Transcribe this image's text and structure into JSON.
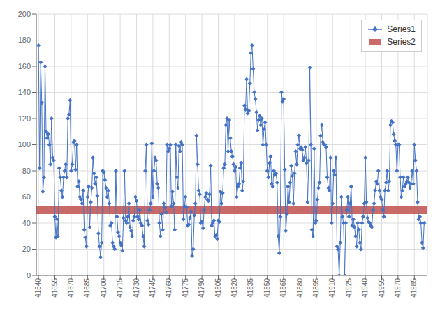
{
  "chart_data": {
    "type": "line",
    "x": [
      41640,
      41641,
      41642,
      41643,
      41644,
      41645,
      41646,
      41647,
      41648,
      41649,
      41650,
      41651,
      41652,
      41653,
      41654,
      41655,
      41656,
      41657,
      41658,
      41659,
      41660,
      41661,
      41662,
      41663,
      41664,
      41665,
      41666,
      41667,
      41668,
      41669,
      41670,
      41671,
      41672,
      41673,
      41674,
      41675,
      41676,
      41677,
      41678,
      41679,
      41680,
      41681,
      41682,
      41683,
      41684,
      41685,
      41686,
      41687,
      41688,
      41689,
      41690,
      41691,
      41692,
      41693,
      41694,
      41695,
      41696,
      41697,
      41698,
      41699,
      41700,
      41701,
      41702,
      41703,
      41704,
      41705,
      41706,
      41707,
      41708,
      41709,
      41710,
      41711,
      41712,
      41713,
      41714,
      41715,
      41716,
      41717,
      41718,
      41719,
      41720,
      41721,
      41722,
      41723,
      41724,
      41725,
      41726,
      41727,
      41728,
      41729,
      41730,
      41731,
      41732,
      41733,
      41734,
      41735,
      41736,
      41737,
      41738,
      41739,
      41740,
      41741,
      41742,
      41743,
      41744,
      41745,
      41746,
      41747,
      41748,
      41749,
      41750,
      41751,
      41752,
      41753,
      41754,
      41755,
      41756,
      41757,
      41758,
      41759,
      41760,
      41761,
      41762,
      41763,
      41764,
      41765,
      41766,
      41767,
      41768,
      41769,
      41770,
      41771,
      41772,
      41773,
      41774,
      41775,
      41776,
      41777,
      41778,
      41779,
      41780,
      41781,
      41782,
      41783,
      41784,
      41785,
      41786,
      41787,
      41788,
      41789,
      41790,
      41791,
      41792,
      41793,
      41794,
      41795,
      41796,
      41797,
      41798,
      41799,
      41800,
      41801,
      41802,
      41803,
      41804,
      41805,
      41806,
      41807,
      41808,
      41809,
      41810,
      41811,
      41812,
      41813,
      41814,
      41815,
      41816,
      41817,
      41818,
      41819,
      41820,
      41821,
      41822,
      41823,
      41824,
      41825,
      41826,
      41827,
      41828,
      41829,
      41830,
      41831,
      41832,
      41833,
      41834,
      41835,
      41836,
      41837,
      41838,
      41839,
      41840,
      41841,
      41842,
      41843,
      41844,
      41845,
      41846,
      41847,
      41848,
      41849,
      41850,
      41851,
      41852,
      41853,
      41854,
      41855,
      41856,
      41857,
      41858,
      41859,
      41860,
      41861,
      41862,
      41863,
      41864,
      41865,
      41866,
      41867,
      41868,
      41869,
      41870,
      41871,
      41872,
      41873,
      41874,
      41875,
      41876,
      41877,
      41878,
      41879,
      41880,
      41881,
      41882,
      41883,
      41884,
      41885,
      41886,
      41887,
      41888,
      41889,
      41890,
      41891,
      41892,
      41893,
      41894,
      41895,
      41896,
      41897,
      41898,
      41899,
      41900,
      41901,
      41902,
      41903,
      41904,
      41905,
      41906,
      41907,
      41908,
      41909,
      41910,
      41911,
      41912,
      41913,
      41914,
      41915,
      41916,
      41917,
      41918,
      41919,
      41920,
      41921,
      41922,
      41923,
      41924,
      41925,
      41926,
      41927,
      41928,
      41929,
      41930,
      41931,
      41932,
      41933,
      41934,
      41935,
      41936,
      41937,
      41938,
      41939,
      41940,
      41941,
      41942,
      41943,
      41944,
      41945,
      41946,
      41947,
      41948,
      41949,
      41950,
      41951,
      41952,
      41953,
      41954,
      41955,
      41956,
      41957,
      41958,
      41959,
      41960,
      41961,
      41962,
      41963,
      41964,
      41965,
      41966,
      41967,
      41968,
      41969,
      41970,
      41971,
      41972,
      41973,
      41974,
      41975,
      41976,
      41977,
      41978,
      41979,
      41980,
      41981,
      41982,
      41983,
      41984,
      41985,
      41986,
      41987,
      41988,
      41989,
      41990,
      41991,
      41992,
      41993,
      41994
    ],
    "series": [
      {
        "name": "Series1",
        "color": "#4472C4",
        "marker": "diamond",
        "values": [
          176,
          82,
          163,
          132,
          64,
          75,
          160,
          110,
          105,
          108,
          100,
          85,
          120,
          90,
          88,
          45,
          29,
          43,
          30,
          82,
          75,
          65,
          60,
          75,
          80,
          85,
          75,
          120,
          123,
          134,
          80,
          85,
          102,
          103,
          81,
          100,
          68,
          72,
          60,
          58,
          55,
          65,
          35,
          29,
          22,
          60,
          68,
          37,
          56,
          67,
          90,
          78,
          70,
          75,
          61,
          32,
          22,
          14,
          25,
          80,
          79,
          73,
          67,
          60,
          65,
          55,
          38,
          40,
          25,
          22,
          20,
          80,
          45,
          33,
          30,
          25,
          23,
          19,
          44,
          80,
          42,
          40,
          45,
          55,
          37,
          34,
          30,
          42,
          45,
          60,
          57,
          45,
          43,
          50,
          40,
          38,
          30,
          22,
          80,
          100,
          42,
          39,
          50,
          55,
          101,
          60,
          80,
          90,
          88,
          70,
          67,
          40,
          30,
          47,
          35,
          55,
          52,
          48,
          100,
          95,
          97,
          100,
          53,
          64,
          55,
          35,
          100,
          75,
          67,
          99,
          95,
          102,
          100,
          43,
          53,
          60,
          52,
          38,
          39,
          44,
          49,
          15,
          20,
          46,
          55,
          107,
          85,
          65,
          62,
          40,
          41,
          36,
          50,
          60,
          63,
          58,
          57,
          62,
          84,
          38,
          40,
          42,
          30,
          31,
          28,
          42,
          41,
          64,
          55,
          63,
          82,
          85,
          115,
          120,
          95,
          119,
          105,
          95,
          91,
          85,
          80,
          83,
          60,
          68,
          70,
          82,
          86,
          65,
          72,
          130,
          127,
          150,
          124,
          126,
          147,
          170,
          176,
          158,
          140,
          135,
          125,
          111,
          119,
          122,
          115,
          120,
          100,
          112,
          117,
          100,
          80,
          75,
          86,
          91,
          70,
          68,
          80,
          77,
          78,
          71,
          30,
          17,
          45,
          140,
          133,
          135,
          81,
          34,
          47,
          68,
          56,
          71,
          84,
          76,
          55,
          78,
          95,
          85,
          100,
          107,
          97,
          98,
          96,
          88,
          90,
          98,
          86,
          56,
          88,
          159,
          100,
          35,
          30,
          97,
          40,
          42,
          58,
          67,
          71,
          107,
          115,
          102,
          100,
          100,
          98,
          75,
          67,
          65,
          90,
          40,
          55,
          80,
          77,
          90,
          22,
          20,
          0,
          25,
          60,
          45,
          40,
          0,
          40,
          50,
          60,
          45,
          55,
          68,
          38,
          43,
          37,
          30,
          22,
          40,
          35,
          25,
          20,
          40,
          45,
          55,
          90,
          56,
          44,
          41,
          40,
          38,
          37,
          50,
          55,
          65,
          72,
          70,
          80,
          65,
          60,
          58,
          50,
          45,
          65,
          71,
          80,
          65,
          72,
          115,
          118,
          117,
          108,
          103,
          100,
          80,
          100,
          100,
          75,
          60,
          65,
          75,
          68,
          70,
          72,
          75,
          71,
          67,
          70,
          80,
          70,
          100,
          88,
          80,
          56,
          43,
          45,
          40,
          25,
          21,
          40
        ]
      },
      {
        "name": "Series2",
        "type": "band",
        "color": "#C0504D",
        "y_range": [
          47,
          53
        ]
      }
    ],
    "xlim": [
      41638,
      41997
    ],
    "xticks": [
      41640,
      41655,
      41670,
      41685,
      41700,
      41715,
      41730,
      41745,
      41760,
      41775,
      41790,
      41805,
      41820,
      41835,
      41850,
      41865,
      41880,
      41895,
      41910,
      41925,
      41940,
      41955,
      41970,
      41985
    ],
    "ylim": [
      0,
      200
    ],
    "yticks": [
      0,
      20,
      40,
      60,
      80,
      100,
      120,
      140,
      160,
      180,
      200
    ],
    "grid": true,
    "legend": "upper right"
  }
}
